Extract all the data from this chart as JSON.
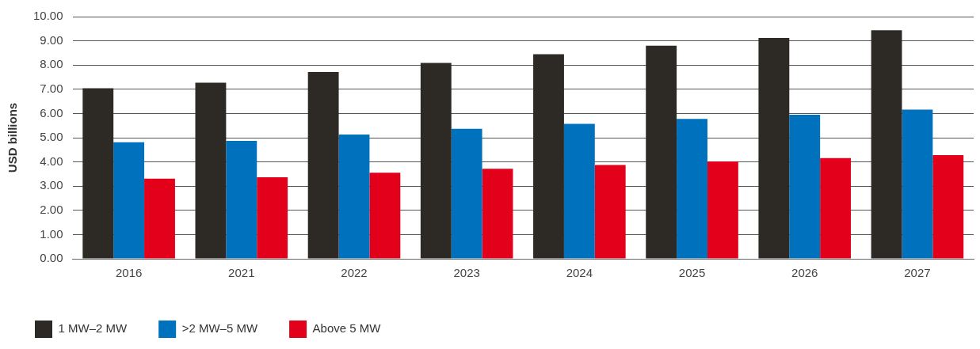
{
  "chart_data": {
    "type": "bar",
    "ylabel": "USD billions",
    "categories": [
      "2016",
      "2021",
      "2022",
      "2023",
      "2024",
      "2025",
      "2026",
      "2027"
    ],
    "series": [
      {
        "name": "1 MW–2 MW",
        "color": "#2d2a26",
        "values": [
          7.04,
          7.27,
          7.71,
          8.09,
          8.45,
          8.8,
          9.12,
          9.44
        ]
      },
      {
        "name": ">2 MW–5 MW",
        "color": "#0071bc",
        "values": [
          4.81,
          4.87,
          5.13,
          5.37,
          5.57,
          5.78,
          5.95,
          6.16
        ]
      },
      {
        "name": "Above 5 MW",
        "color": "#e2001a",
        "values": [
          3.31,
          3.37,
          3.55,
          3.72,
          3.87,
          4.02,
          4.16,
          4.28
        ]
      }
    ],
    "ylim": [
      0,
      10
    ],
    "yticks": [
      {
        "value": 0,
        "label": "0.00"
      },
      {
        "value": 1,
        "label": "1.00"
      },
      {
        "value": 2,
        "label": "2.00"
      },
      {
        "value": 3,
        "label": "3.00"
      },
      {
        "value": 4,
        "label": "4.00"
      },
      {
        "value": 5,
        "label": "5.00"
      },
      {
        "value": 6,
        "label": "6.00"
      },
      {
        "value": 7,
        "label": "7.00"
      },
      {
        "value": 8,
        "label": "8.00"
      },
      {
        "value": 9,
        "label": "9.00"
      },
      {
        "value": 10,
        "label": "10.00"
      }
    ],
    "grid": "y",
    "legend": "bottom left"
  }
}
